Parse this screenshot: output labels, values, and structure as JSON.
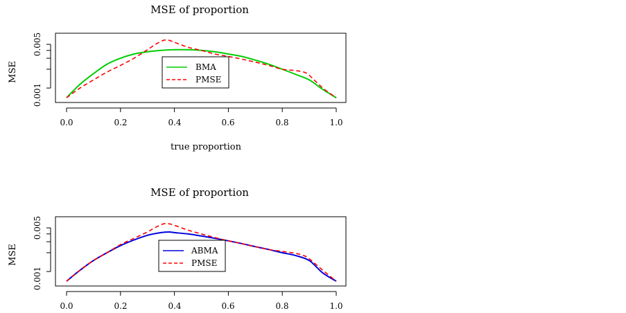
{
  "chart_data": [
    {
      "type": "line",
      "title": "MSE of proportion",
      "xlabel": "true proportion",
      "ylabel": "MSE",
      "log_y": true,
      "xlim": [
        0,
        1
      ],
      "ylim": [
        0.00065,
        0.0068
      ],
      "x_ticks": [
        "0.0",
        "0.2",
        "0.4",
        "0.6",
        "0.8",
        "1.0"
      ],
      "y_ticks": [
        "0.001",
        "0.005"
      ],
      "x_tick_values": [
        0,
        0.2,
        0.4,
        0.6,
        0.8,
        1.0
      ],
      "y_tick_values": [
        0.001,
        0.002,
        0.003,
        0.004,
        0.005
      ],
      "legend_position": "center",
      "series": [
        {
          "name": "BMA",
          "style": "solid",
          "color": "#00cc00",
          "x": [
            0.0,
            0.05,
            0.1,
            0.15,
            0.2,
            0.25,
            0.3,
            0.35,
            0.4,
            0.45,
            0.5,
            0.55,
            0.6,
            0.65,
            0.7,
            0.75,
            0.8,
            0.85,
            0.9,
            0.95,
            1.0
          ],
          "y": [
            0.0007,
            0.00115,
            0.0017,
            0.0024,
            0.003,
            0.0035,
            0.0038,
            0.004,
            0.0041,
            0.0041,
            0.004,
            0.0038,
            0.0035,
            0.0032,
            0.0028,
            0.0024,
            0.002,
            0.00165,
            0.00135,
            0.00095,
            0.0007
          ]
        },
        {
          "name": "PMSE",
          "style": "dashed",
          "color": "#ff0000",
          "x": [
            0.0,
            0.05,
            0.1,
            0.15,
            0.2,
            0.25,
            0.3,
            0.33,
            0.36,
            0.38,
            0.4,
            0.45,
            0.5,
            0.55,
            0.6,
            0.65,
            0.7,
            0.75,
            0.8,
            0.85,
            0.88,
            0.9,
            0.95,
            1.0
          ],
          "y": [
            0.0007,
            0.001,
            0.00135,
            0.0018,
            0.0023,
            0.003,
            0.0041,
            0.005,
            0.0058,
            0.0058,
            0.0054,
            0.0045,
            0.004,
            0.0035,
            0.0032,
            0.0029,
            0.0026,
            0.0023,
            0.002,
            0.0019,
            0.0018,
            0.0016,
            0.001,
            0.0007
          ]
        }
      ]
    },
    {
      "type": "line",
      "title": "MSE of proportion",
      "xlabel": "",
      "ylabel": "MSE",
      "log_y": true,
      "xlim": [
        0,
        1
      ],
      "ylim": [
        0.00065,
        0.0068
      ],
      "x_ticks": [
        "0.0",
        "0.2",
        "0.4",
        "0.6",
        "0.8",
        "1.0"
      ],
      "y_ticks": [
        "0.001",
        "0.005"
      ],
      "x_tick_values": [
        0,
        0.2,
        0.4,
        0.6,
        0.8,
        1.0
      ],
      "y_tick_values": [
        0.001,
        0.002,
        0.003,
        0.004,
        0.005
      ],
      "legend_position": "center",
      "series": [
        {
          "name": "ABMA",
          "style": "solid",
          "color": "#0000dd",
          "x": [
            0.0,
            0.05,
            0.1,
            0.15,
            0.2,
            0.25,
            0.3,
            0.35,
            0.38,
            0.4,
            0.45,
            0.5,
            0.55,
            0.6,
            0.65,
            0.7,
            0.75,
            0.8,
            0.85,
            0.9,
            0.95,
            1.0
          ],
          "y": [
            0.0007,
            0.00105,
            0.0015,
            0.002,
            0.0026,
            0.0032,
            0.0038,
            0.0042,
            0.0043,
            0.0042,
            0.004,
            0.0037,
            0.0034,
            0.0031,
            0.0028,
            0.0025,
            0.00225,
            0.002,
            0.0018,
            0.0015,
            0.00095,
            0.0007
          ]
        },
        {
          "name": "PMSE",
          "style": "dashed",
          "color": "#ff0000",
          "x": [
            0.0,
            0.05,
            0.1,
            0.15,
            0.2,
            0.25,
            0.3,
            0.33,
            0.36,
            0.38,
            0.4,
            0.45,
            0.5,
            0.55,
            0.6,
            0.65,
            0.7,
            0.75,
            0.8,
            0.85,
            0.88,
            0.9,
            0.95,
            1.0
          ],
          "y": [
            0.0007,
            0.00105,
            0.0015,
            0.002,
            0.0027,
            0.0034,
            0.0043,
            0.0051,
            0.0058,
            0.0058,
            0.0055,
            0.0046,
            0.004,
            0.0035,
            0.0031,
            0.0028,
            0.0025,
            0.00225,
            0.0021,
            0.00195,
            0.0018,
            0.0016,
            0.00105,
            0.0007
          ]
        }
      ]
    }
  ]
}
